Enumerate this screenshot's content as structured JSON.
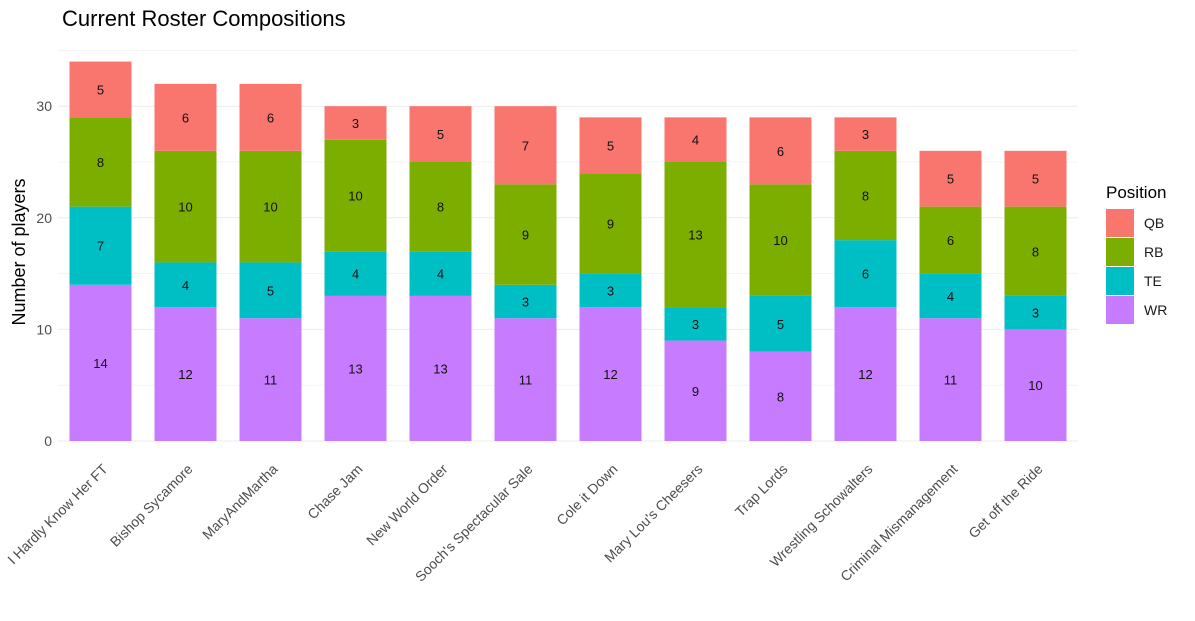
{
  "chart_data": {
    "type": "bar",
    "stacked": true,
    "title": "Current Roster Compositions",
    "xlabel": "",
    "ylabel": "Number of players",
    "ylim": [
      0,
      35
    ],
    "yticks": [
      0,
      10,
      20,
      30
    ],
    "grid": true,
    "legend": {
      "title": "Position",
      "placement": "right"
    },
    "categories": [
      "I Hardly Know Her FT",
      "Bishop Sycamore",
      "MaryAndMartha",
      "Chase Jam",
      "New World Order",
      "Sooch's Spectacular Sale",
      "Cole it Down",
      "Mary Lou's Cheesers",
      "Trap Lords",
      "Wrestling Schowalters",
      "Criminal Mismanagement",
      "Get off the Ride"
    ],
    "series": [
      {
        "name": "WR",
        "color": "#C77CFF",
        "values": [
          14,
          12,
          11,
          13,
          13,
          11,
          12,
          9,
          8,
          12,
          11,
          10
        ]
      },
      {
        "name": "TE",
        "color": "#00BFC4",
        "values": [
          7,
          4,
          5,
          4,
          4,
          3,
          3,
          3,
          5,
          6,
          4,
          3
        ]
      },
      {
        "name": "RB",
        "color": "#7CAE00",
        "values": [
          8,
          10,
          10,
          10,
          8,
          9,
          9,
          13,
          10,
          8,
          6,
          8
        ]
      },
      {
        "name": "QB",
        "color": "#F8766D",
        "values": [
          5,
          6,
          6,
          3,
          5,
          7,
          5,
          4,
          6,
          3,
          5,
          5
        ]
      }
    ],
    "legend_order": [
      "QB",
      "RB",
      "TE",
      "WR"
    ]
  }
}
